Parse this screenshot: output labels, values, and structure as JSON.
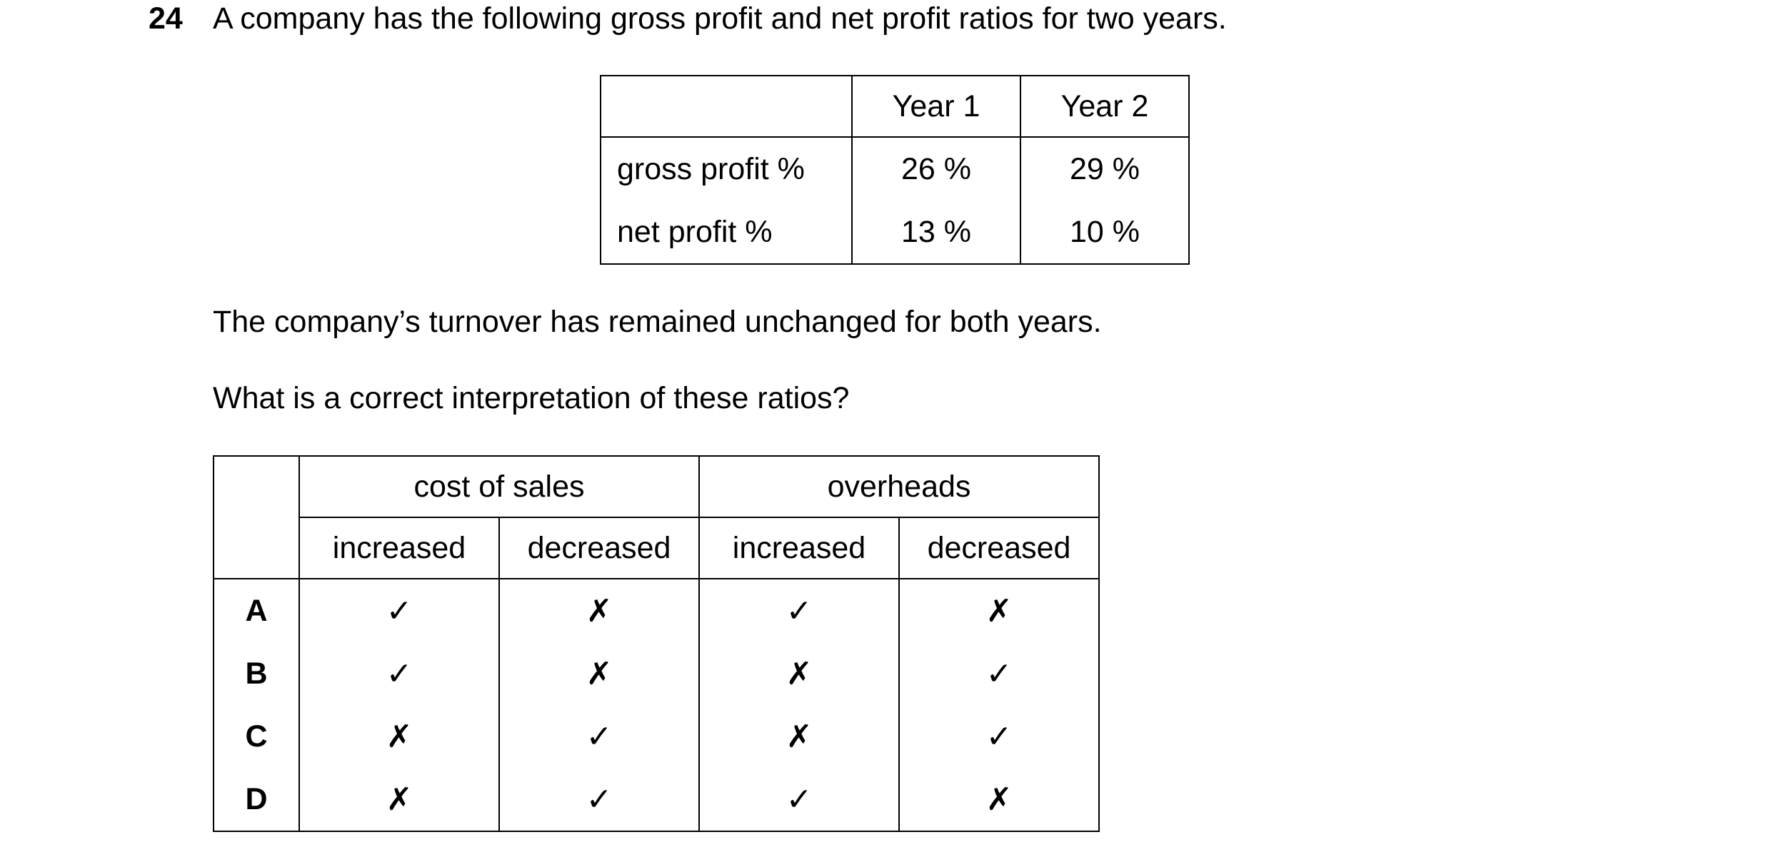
{
  "question": {
    "number": "24",
    "text": "A company has the following gross profit and net profit ratios for two years."
  },
  "ratio_table": {
    "headers": [
      "",
      "Year 1",
      "Year 2"
    ],
    "rows": [
      {
        "label": "gross profit %",
        "year1": "26 %",
        "year2": "29 %"
      },
      {
        "label": "net profit %",
        "year1": "13 %",
        "year2": "10 %"
      }
    ]
  },
  "paragraphs": {
    "turnover": "The company’s turnover has remained unchanged for both years.",
    "question": "What is a correct interpretation of these ratios?"
  },
  "options_table": {
    "groups": [
      "cost of sales",
      "overheads"
    ],
    "subheaders": [
      "increased",
      "decreased",
      "increased",
      "decreased"
    ],
    "symbols": {
      "tick": "✓",
      "cross": "✗"
    },
    "options": [
      {
        "letter": "A",
        "marks": [
          "✓",
          "✗",
          "✓",
          "✗"
        ]
      },
      {
        "letter": "B",
        "marks": [
          "✓",
          "✗",
          "✗",
          "✓"
        ]
      },
      {
        "letter": "C",
        "marks": [
          "✗",
          "✓",
          "✗",
          "✓"
        ]
      },
      {
        "letter": "D",
        "marks": [
          "✗",
          "✓",
          "✓",
          "✗"
        ]
      }
    ]
  }
}
